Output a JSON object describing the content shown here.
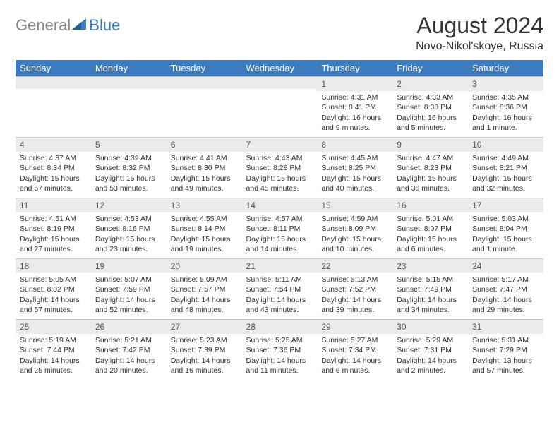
{
  "logo": {
    "general": "General",
    "blue": "Blue"
  },
  "title": "August 2024",
  "location": "Novo-Nikol'skoye, Russia",
  "day_headers": [
    "Sunday",
    "Monday",
    "Tuesday",
    "Wednesday",
    "Thursday",
    "Friday",
    "Saturday"
  ],
  "colors": {
    "header_bg": "#3b7bbf",
    "header_text": "#ffffff",
    "daynum_bg": "#ebebeb",
    "border": "#c8c8c8",
    "text": "#333333",
    "logo_gray": "#888888",
    "logo_blue": "#3b7bbf"
  },
  "weeks": [
    [
      {
        "n": "",
        "sunrise": "",
        "sunset": "",
        "daylight": ""
      },
      {
        "n": "",
        "sunrise": "",
        "sunset": "",
        "daylight": ""
      },
      {
        "n": "",
        "sunrise": "",
        "sunset": "",
        "daylight": ""
      },
      {
        "n": "",
        "sunrise": "",
        "sunset": "",
        "daylight": ""
      },
      {
        "n": "1",
        "sunrise": "Sunrise: 4:31 AM",
        "sunset": "Sunset: 8:41 PM",
        "daylight": "Daylight: 16 hours and 9 minutes."
      },
      {
        "n": "2",
        "sunrise": "Sunrise: 4:33 AM",
        "sunset": "Sunset: 8:38 PM",
        "daylight": "Daylight: 16 hours and 5 minutes."
      },
      {
        "n": "3",
        "sunrise": "Sunrise: 4:35 AM",
        "sunset": "Sunset: 8:36 PM",
        "daylight": "Daylight: 16 hours and 1 minute."
      }
    ],
    [
      {
        "n": "4",
        "sunrise": "Sunrise: 4:37 AM",
        "sunset": "Sunset: 8:34 PM",
        "daylight": "Daylight: 15 hours and 57 minutes."
      },
      {
        "n": "5",
        "sunrise": "Sunrise: 4:39 AM",
        "sunset": "Sunset: 8:32 PM",
        "daylight": "Daylight: 15 hours and 53 minutes."
      },
      {
        "n": "6",
        "sunrise": "Sunrise: 4:41 AM",
        "sunset": "Sunset: 8:30 PM",
        "daylight": "Daylight: 15 hours and 49 minutes."
      },
      {
        "n": "7",
        "sunrise": "Sunrise: 4:43 AM",
        "sunset": "Sunset: 8:28 PM",
        "daylight": "Daylight: 15 hours and 45 minutes."
      },
      {
        "n": "8",
        "sunrise": "Sunrise: 4:45 AM",
        "sunset": "Sunset: 8:25 PM",
        "daylight": "Daylight: 15 hours and 40 minutes."
      },
      {
        "n": "9",
        "sunrise": "Sunrise: 4:47 AM",
        "sunset": "Sunset: 8:23 PM",
        "daylight": "Daylight: 15 hours and 36 minutes."
      },
      {
        "n": "10",
        "sunrise": "Sunrise: 4:49 AM",
        "sunset": "Sunset: 8:21 PM",
        "daylight": "Daylight: 15 hours and 32 minutes."
      }
    ],
    [
      {
        "n": "11",
        "sunrise": "Sunrise: 4:51 AM",
        "sunset": "Sunset: 8:19 PM",
        "daylight": "Daylight: 15 hours and 27 minutes."
      },
      {
        "n": "12",
        "sunrise": "Sunrise: 4:53 AM",
        "sunset": "Sunset: 8:16 PM",
        "daylight": "Daylight: 15 hours and 23 minutes."
      },
      {
        "n": "13",
        "sunrise": "Sunrise: 4:55 AM",
        "sunset": "Sunset: 8:14 PM",
        "daylight": "Daylight: 15 hours and 19 minutes."
      },
      {
        "n": "14",
        "sunrise": "Sunrise: 4:57 AM",
        "sunset": "Sunset: 8:11 PM",
        "daylight": "Daylight: 15 hours and 14 minutes."
      },
      {
        "n": "15",
        "sunrise": "Sunrise: 4:59 AM",
        "sunset": "Sunset: 8:09 PM",
        "daylight": "Daylight: 15 hours and 10 minutes."
      },
      {
        "n": "16",
        "sunrise": "Sunrise: 5:01 AM",
        "sunset": "Sunset: 8:07 PM",
        "daylight": "Daylight: 15 hours and 6 minutes."
      },
      {
        "n": "17",
        "sunrise": "Sunrise: 5:03 AM",
        "sunset": "Sunset: 8:04 PM",
        "daylight": "Daylight: 15 hours and 1 minute."
      }
    ],
    [
      {
        "n": "18",
        "sunrise": "Sunrise: 5:05 AM",
        "sunset": "Sunset: 8:02 PM",
        "daylight": "Daylight: 14 hours and 57 minutes."
      },
      {
        "n": "19",
        "sunrise": "Sunrise: 5:07 AM",
        "sunset": "Sunset: 7:59 PM",
        "daylight": "Daylight: 14 hours and 52 minutes."
      },
      {
        "n": "20",
        "sunrise": "Sunrise: 5:09 AM",
        "sunset": "Sunset: 7:57 PM",
        "daylight": "Daylight: 14 hours and 48 minutes."
      },
      {
        "n": "21",
        "sunrise": "Sunrise: 5:11 AM",
        "sunset": "Sunset: 7:54 PM",
        "daylight": "Daylight: 14 hours and 43 minutes."
      },
      {
        "n": "22",
        "sunrise": "Sunrise: 5:13 AM",
        "sunset": "Sunset: 7:52 PM",
        "daylight": "Daylight: 14 hours and 39 minutes."
      },
      {
        "n": "23",
        "sunrise": "Sunrise: 5:15 AM",
        "sunset": "Sunset: 7:49 PM",
        "daylight": "Daylight: 14 hours and 34 minutes."
      },
      {
        "n": "24",
        "sunrise": "Sunrise: 5:17 AM",
        "sunset": "Sunset: 7:47 PM",
        "daylight": "Daylight: 14 hours and 29 minutes."
      }
    ],
    [
      {
        "n": "25",
        "sunrise": "Sunrise: 5:19 AM",
        "sunset": "Sunset: 7:44 PM",
        "daylight": "Daylight: 14 hours and 25 minutes."
      },
      {
        "n": "26",
        "sunrise": "Sunrise: 5:21 AM",
        "sunset": "Sunset: 7:42 PM",
        "daylight": "Daylight: 14 hours and 20 minutes."
      },
      {
        "n": "27",
        "sunrise": "Sunrise: 5:23 AM",
        "sunset": "Sunset: 7:39 PM",
        "daylight": "Daylight: 14 hours and 16 minutes."
      },
      {
        "n": "28",
        "sunrise": "Sunrise: 5:25 AM",
        "sunset": "Sunset: 7:36 PM",
        "daylight": "Daylight: 14 hours and 11 minutes."
      },
      {
        "n": "29",
        "sunrise": "Sunrise: 5:27 AM",
        "sunset": "Sunset: 7:34 PM",
        "daylight": "Daylight: 14 hours and 6 minutes."
      },
      {
        "n": "30",
        "sunrise": "Sunrise: 5:29 AM",
        "sunset": "Sunset: 7:31 PM",
        "daylight": "Daylight: 14 hours and 2 minutes."
      },
      {
        "n": "31",
        "sunrise": "Sunrise: 5:31 AM",
        "sunset": "Sunset: 7:29 PM",
        "daylight": "Daylight: 13 hours and 57 minutes."
      }
    ]
  ]
}
